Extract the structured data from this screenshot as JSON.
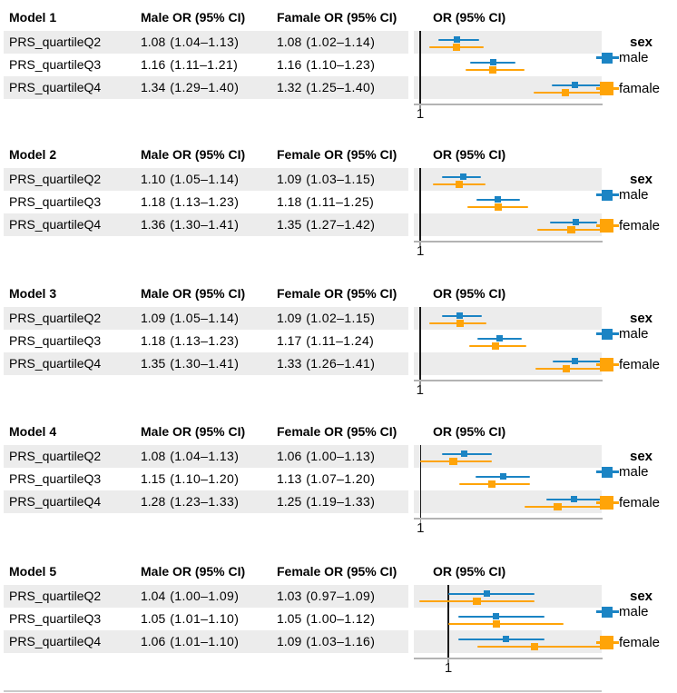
{
  "colors": {
    "male": "#1B84C4",
    "female": "#FFA408",
    "row_stripe": "#ECECEC",
    "axis_line": "#B3B3B3",
    "reference_line": "#1A1A1A",
    "tick": "#8F8F8F"
  },
  "format": {
    "or_decimals": 2,
    "open_paren": "(",
    "close_paren": ")",
    "range_separator": "–"
  },
  "chart_data": [
    {
      "type": "forest",
      "title": "Model 1",
      "male_header": "Male OR (95% CI)",
      "female_header": "Famale OR (95% CI)",
      "plot_header": "OR (95% CI)",
      "legend": {
        "title": "sex",
        "items": [
          {
            "id": "male",
            "label": "male"
          },
          {
            "id": "female",
            "label": "famale"
          }
        ]
      },
      "axis": {
        "min": 0.986,
        "max": 1.4,
        "ref": 1,
        "tick_label": "1"
      },
      "rows": [
        {
          "label": "PRS_quartileQ2",
          "male": {
            "or": 1.08,
            "low": 1.04,
            "high": 1.13
          },
          "female": {
            "or": 1.08,
            "low": 1.02,
            "high": 1.14
          }
        },
        {
          "label": "PRS_quartileQ3",
          "male": {
            "or": 1.16,
            "low": 1.11,
            "high": 1.21
          },
          "female": {
            "or": 1.16,
            "low": 1.1,
            "high": 1.23
          }
        },
        {
          "label": "PRS_quartileQ4",
          "male": {
            "or": 1.34,
            "low": 1.29,
            "high": 1.4
          },
          "female": {
            "or": 1.32,
            "low": 1.25,
            "high": 1.4
          }
        }
      ]
    },
    {
      "type": "forest",
      "title": "Model 2",
      "male_header": "Male OR (95% CI)",
      "female_header": "Female OR (95% CI)",
      "plot_header": "OR (95% CI)",
      "legend": {
        "title": "sex",
        "items": [
          {
            "id": "male",
            "label": "male"
          },
          {
            "id": "female",
            "label": "female"
          }
        ]
      },
      "axis": {
        "min": 0.985,
        "max": 1.42,
        "ref": 1,
        "tick_label": "1"
      },
      "rows": [
        {
          "label": "PRS_quartileQ2",
          "male": {
            "or": 1.1,
            "low": 1.05,
            "high": 1.14
          },
          "female": {
            "or": 1.09,
            "low": 1.03,
            "high": 1.15
          }
        },
        {
          "label": "PRS_quartileQ3",
          "male": {
            "or": 1.18,
            "low": 1.13,
            "high": 1.23
          },
          "female": {
            "or": 1.18,
            "low": 1.11,
            "high": 1.25
          }
        },
        {
          "label": "PRS_quartileQ4",
          "male": {
            "or": 1.36,
            "low": 1.3,
            "high": 1.41
          },
          "female": {
            "or": 1.35,
            "low": 1.27,
            "high": 1.42
          }
        }
      ]
    },
    {
      "type": "forest",
      "title": "Model 3",
      "male_header": "Male OR (95% CI)",
      "female_header": "Female OR (95% CI)",
      "plot_header": "OR (95% CI)",
      "legend": {
        "title": "sex",
        "items": [
          {
            "id": "male",
            "label": "male"
          },
          {
            "id": "female",
            "label": "female"
          }
        ]
      },
      "axis": {
        "min": 0.986,
        "max": 1.41,
        "ref": 1,
        "tick_label": "1"
      },
      "rows": [
        {
          "label": "PRS_quartileQ2",
          "male": {
            "or": 1.09,
            "low": 1.05,
            "high": 1.14
          },
          "female": {
            "or": 1.09,
            "low": 1.02,
            "high": 1.15
          }
        },
        {
          "label": "PRS_quartileQ3",
          "male": {
            "or": 1.18,
            "low": 1.13,
            "high": 1.23
          },
          "female": {
            "or": 1.17,
            "low": 1.11,
            "high": 1.24
          }
        },
        {
          "label": "PRS_quartileQ4",
          "male": {
            "or": 1.35,
            "low": 1.3,
            "high": 1.41
          },
          "female": {
            "or": 1.33,
            "low": 1.26,
            "high": 1.41
          }
        }
      ]
    },
    {
      "type": "forest",
      "title": "Model 4",
      "male_header": "Male OR (95% CI)",
      "female_header": "Female OR (95% CI)",
      "plot_header": "OR (95% CI)",
      "legend": {
        "title": "sex",
        "items": [
          {
            "id": "male",
            "label": "male"
          },
          {
            "id": "female",
            "label": "female"
          }
        ]
      },
      "axis": {
        "min": 0.988,
        "max": 1.33,
        "ref": 1,
        "tick_label": "1"
      },
      "rows": [
        {
          "label": "PRS_quartileQ2",
          "male": {
            "or": 1.08,
            "low": 1.04,
            "high": 1.13
          },
          "female": {
            "or": 1.06,
            "low": 1.0,
            "high": 1.13
          }
        },
        {
          "label": "PRS_quartileQ3",
          "male": {
            "or": 1.15,
            "low": 1.1,
            "high": 1.2
          },
          "female": {
            "or": 1.13,
            "low": 1.07,
            "high": 1.2
          }
        },
        {
          "label": "PRS_quartileQ4",
          "male": {
            "or": 1.28,
            "low": 1.23,
            "high": 1.33
          },
          "female": {
            "or": 1.25,
            "low": 1.19,
            "high": 1.33
          }
        }
      ]
    },
    {
      "type": "forest",
      "title": "Model 5",
      "male_header": "Male OR (95% CI)",
      "female_header": "Female OR (95% CI)",
      "plot_header": "OR (95% CI)",
      "legend": {
        "title": "sex",
        "items": [
          {
            "id": "male",
            "label": "male"
          },
          {
            "id": "female",
            "label": "female"
          }
        ]
      },
      "axis": {
        "min": 0.964,
        "max": 1.16,
        "ref": 1,
        "tick_label": "1"
      },
      "rows": [
        {
          "label": "PRS_quartileQ2",
          "male": {
            "or": 1.04,
            "low": 1.0,
            "high": 1.09
          },
          "female": {
            "or": 1.03,
            "low": 0.97,
            "high": 1.09
          }
        },
        {
          "label": "PRS_quartileQ3",
          "male": {
            "or": 1.05,
            "low": 1.01,
            "high": 1.1
          },
          "female": {
            "or": 1.05,
            "low": 1.0,
            "high": 1.12
          }
        },
        {
          "label": "PRS_quartileQ4",
          "male": {
            "or": 1.06,
            "low": 1.01,
            "high": 1.1
          },
          "female": {
            "or": 1.09,
            "low": 1.03,
            "high": 1.16
          }
        }
      ]
    }
  ]
}
